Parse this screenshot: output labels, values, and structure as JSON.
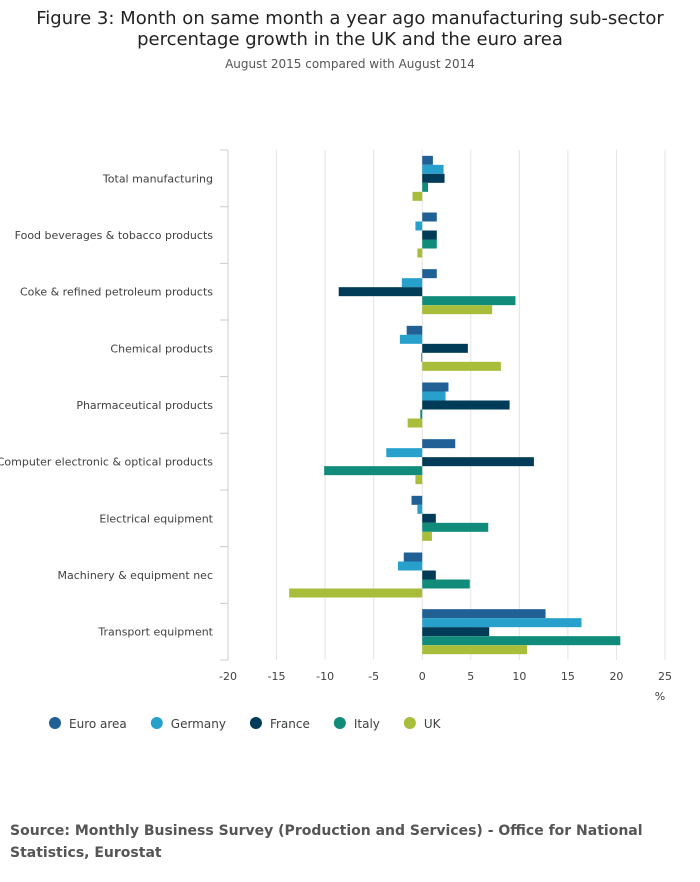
{
  "title": "Figure 3: Month on same month a year ago manufacturing sub-sector percentage growth in the UK and the euro area",
  "subtitle": "August 2015 compared with August 2014",
  "source": "Source: Monthly Business Survey (Production and Services) - Office for National Statistics, Eurostat",
  "chart_data": {
    "type": "bar",
    "orientation": "horizontal",
    "title": "Figure 3: Month on same month a year ago manufacturing sub-sector percentage growth in the UK and the euro area",
    "subtitle": "August 2015 compared with August 2014",
    "xlabel": "%",
    "ylabel": "",
    "xlim": [
      -20,
      25
    ],
    "xticks": [
      -20,
      -15,
      -10,
      -5,
      0,
      5,
      10,
      15,
      20,
      25
    ],
    "grid": true,
    "legend_position": "bottom-left",
    "categories": [
      "Total manufacturing",
      "Food beverages & tobacco products",
      "Coke & refined petroleum products",
      "Chemical products",
      "Pharmaceutical products",
      "Computer electronic & optical products",
      "Electrical equipment",
      "Machinery & equipment nec",
      "Transport equipment"
    ],
    "series": [
      {
        "name": "Euro area",
        "color": "#206095",
        "values": [
          1.1,
          1.5,
          1.5,
          -1.6,
          2.7,
          3.4,
          -1.1,
          -1.9,
          12.7
        ]
      },
      {
        "name": "Germany",
        "color": "#27a0cc",
        "values": [
          2.2,
          -0.7,
          -2.1,
          -2.3,
          2.4,
          -3.7,
          -0.5,
          -2.5,
          16.4
        ]
      },
      {
        "name": "France",
        "color": "#003c57",
        "values": [
          2.3,
          1.5,
          -8.6,
          4.7,
          9.0,
          11.5,
          1.4,
          1.4,
          6.9
        ]
      },
      {
        "name": "Italy",
        "color": "#118c7b",
        "values": [
          0.6,
          1.5,
          9.6,
          -0.1,
          -0.2,
          -10.1,
          6.8,
          4.9,
          20.4
        ]
      },
      {
        "name": "UK",
        "color": "#a8bd3a",
        "values": [
          -1.0,
          -0.5,
          7.2,
          8.1,
          -1.5,
          -0.7,
          1.0,
          -13.7,
          10.8
        ]
      }
    ]
  }
}
